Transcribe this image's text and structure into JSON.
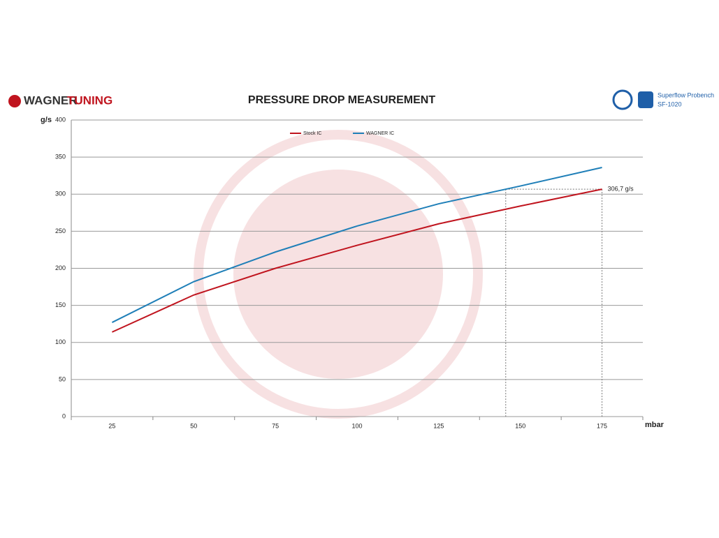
{
  "chart_data": {
    "type": "line",
    "title": "PRESSURE DROP MEASUREMENT",
    "logo_text_1": "WAGNER",
    "logo_text_2": "TUNING",
    "device": "Superflow Probench",
    "device_model": "SF-1020",
    "y_label": "g/s",
    "x_label": "mbar",
    "categories": [
      "25",
      "50",
      "75",
      "100",
      "125",
      "150",
      "175"
    ],
    "series": [
      {
        "name": "Stock IC",
        "color": "#c0141e",
        "values": [
          114,
          164,
          200,
          231,
          260,
          284,
          306.7
        ]
      },
      {
        "name": "WAGNER IC",
        "color": "#1f7fb8",
        "values": [
          127,
          182,
          222,
          257,
          287,
          311,
          336
        ]
      }
    ],
    "annotation": {
      "value": 306.7,
      "label": "306,7 g/s"
    },
    "ylim": [
      0,
      400
    ],
    "yticks": [
      0,
      50,
      100,
      150,
      200,
      250,
      300,
      350,
      400
    ],
    "grid": true
  }
}
